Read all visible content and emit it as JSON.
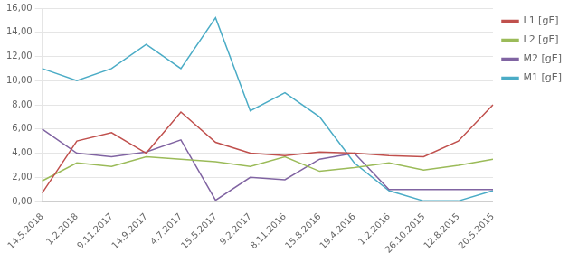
{
  "chart_data": {
    "type": "line",
    "categories": [
      "14.5.2018",
      "1.2.2018",
      "9.11.2017",
      "14.9.2017",
      "4.7.2017",
      "15.5.2017",
      "9.2.2017",
      "8.11.2016",
      "15.8.2016",
      "19.4.2016",
      "1.2.2016",
      "26.10.2015",
      "12.8.2015",
      "20.5.2015"
    ],
    "series": [
      {
        "name": "L1 [gE]",
        "color": "#c0504d",
        "values": [
          0.7,
          5.0,
          5.7,
          4.0,
          7.4,
          4.9,
          4.0,
          3.8,
          4.1,
          4.0,
          3.8,
          3.7,
          5.0,
          8.0
        ]
      },
      {
        "name": "L2 [gE]",
        "color": "#9bbb59",
        "values": [
          1.7,
          3.2,
          2.9,
          3.7,
          3.5,
          3.3,
          2.9,
          3.7,
          2.5,
          2.8,
          3.2,
          2.6,
          3.0,
          3.5
        ]
      },
      {
        "name": "M2 [gE]",
        "color": "#8064a2",
        "values": [
          6.0,
          4.0,
          3.7,
          4.1,
          5.1,
          0.1,
          2.0,
          1.8,
          3.5,
          4.0,
          1.0,
          1.0,
          1.0,
          1.0
        ]
      },
      {
        "name": "M1 [gE]",
        "color": "#4bacc6",
        "values": [
          11.0,
          10.0,
          11.0,
          13.0,
          11.0,
          15.2,
          7.5,
          9.0,
          7.0,
          3.2,
          0.9,
          0.05,
          0.05,
          0.9
        ]
      }
    ],
    "ylim": [
      0,
      16
    ],
    "yticks": [
      {
        "value": 0,
        "label": "0,00"
      },
      {
        "value": 2,
        "label": "2,00"
      },
      {
        "value": 4,
        "label": "4,00"
      },
      {
        "value": 6,
        "label": "6,00"
      },
      {
        "value": 8,
        "label": "8,00"
      },
      {
        "value": 10,
        "label": "10,00"
      },
      {
        "value": 12,
        "label": "12,00"
      },
      {
        "value": 14,
        "label": "14,00"
      },
      {
        "value": 16,
        "label": "16,00"
      }
    ],
    "grid": "y",
    "legend": "right"
  }
}
